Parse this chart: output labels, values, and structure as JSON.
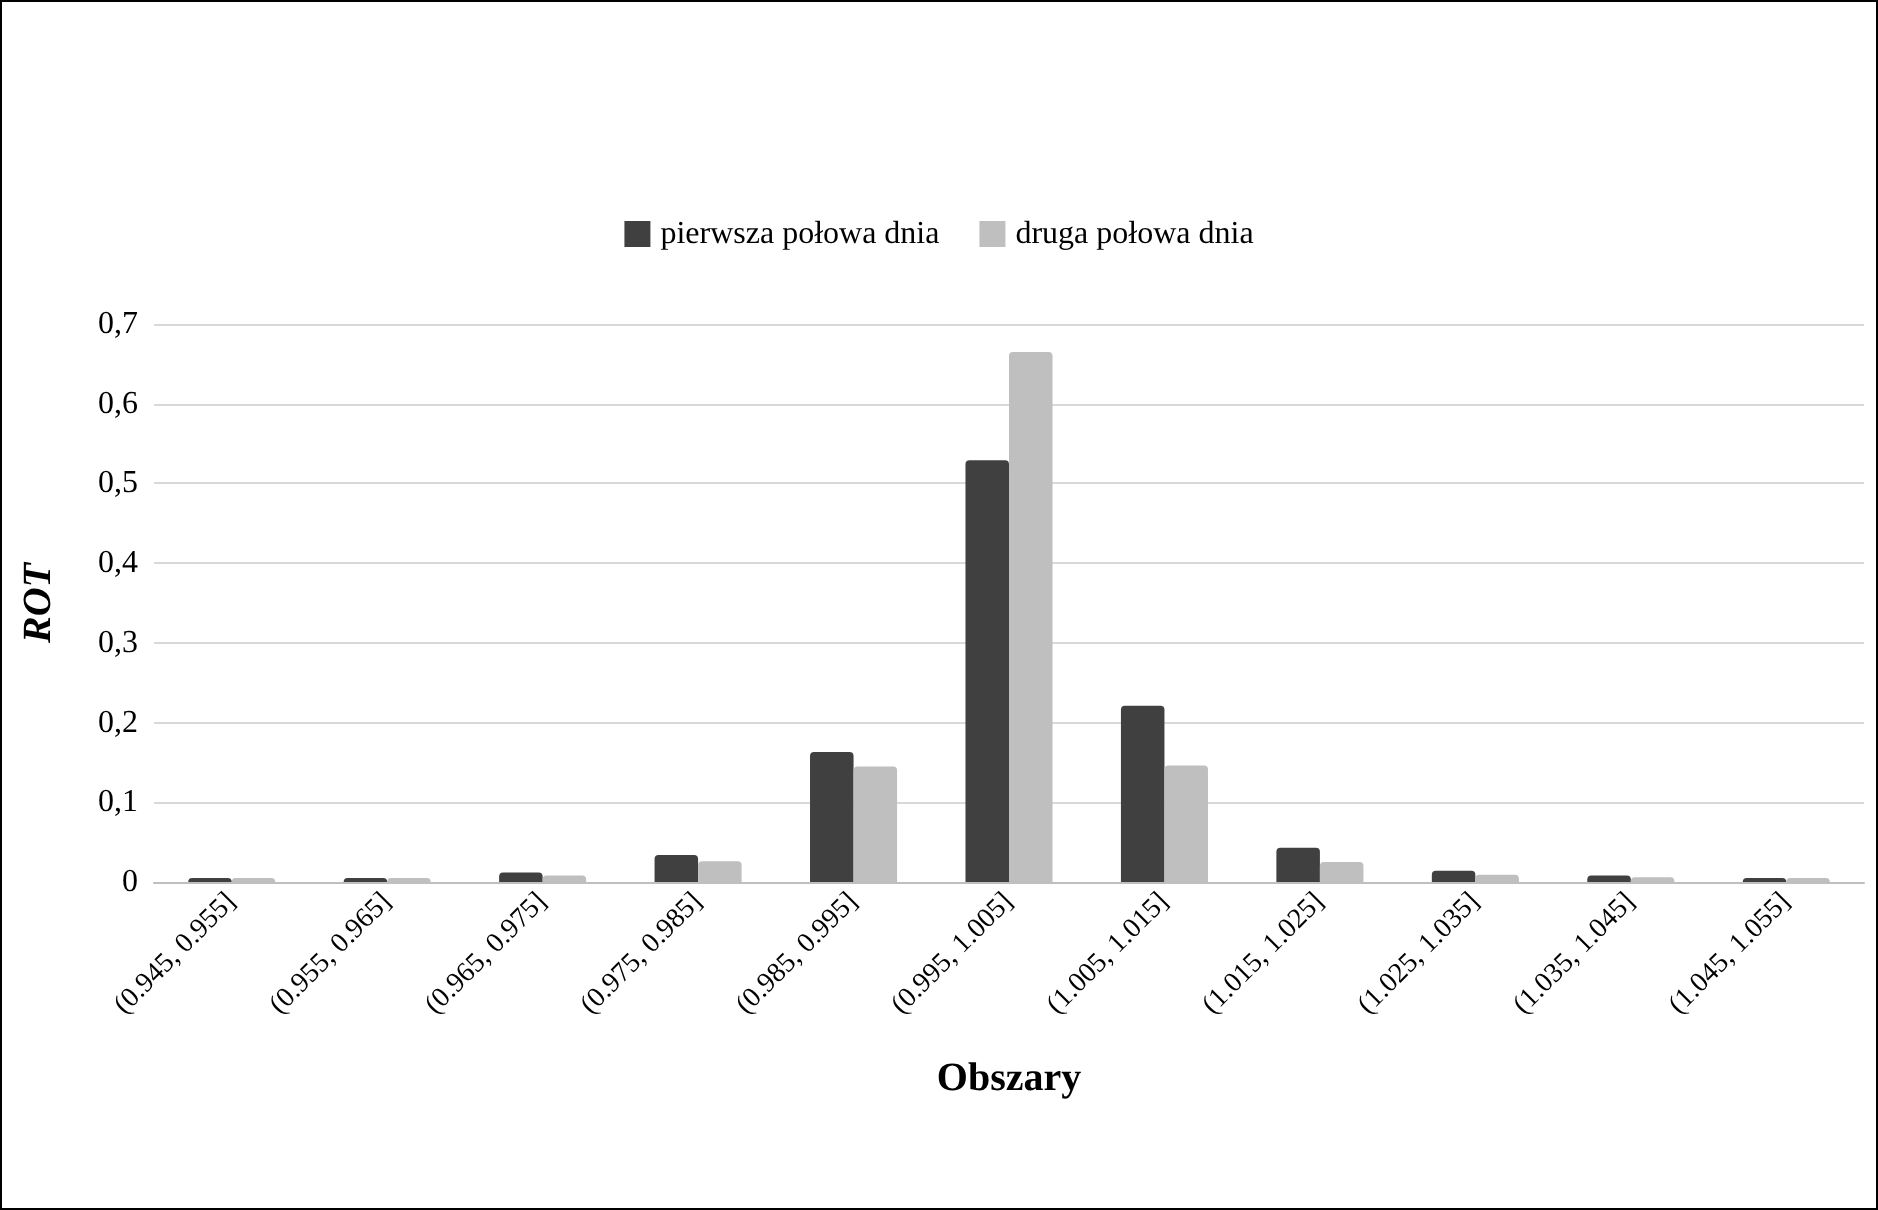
{
  "chart_data": {
    "type": "bar",
    "xlabel": "Obszary",
    "ylabel": "ROT",
    "categories": [
      "(0.945, 0.955]",
      "(0.955, 0.965]",
      "(0.965, 0.975]",
      "(0.975, 0.985]",
      "(0.985, 0.995]",
      "(0.995, 1.005]",
      "(1.005, 1.015]",
      "(1.015, 1.025]",
      "(1.025, 1.035]",
      "(1.035, 1.045]",
      "(1.045, 1.055]"
    ],
    "series": [
      {
        "name": "pierwsza połowa dnia",
        "color": "#404040",
        "values": [
          0.005,
          0.005,
          0.012,
          0.034,
          0.163,
          0.529,
          0.221,
          0.043,
          0.014,
          0.008,
          0.005
        ]
      },
      {
        "name": "druga połowa dnia",
        "color": "#bfbfbf",
        "values": [
          0.005,
          0.005,
          0.008,
          0.026,
          0.145,
          0.665,
          0.146,
          0.025,
          0.009,
          0.006,
          0.005
        ]
      }
    ],
    "ylim": [
      0,
      0.7
    ],
    "yticks": [
      0,
      {
        "value": 0.1,
        "label": "0,1"
      },
      {
        "value": 0.2,
        "label": "0,2"
      },
      {
        "value": 0.3,
        "label": "0,3"
      },
      {
        "value": 0.4,
        "label": "0,4"
      },
      {
        "value": 0.5,
        "label": "0,5"
      },
      {
        "value": 0.6,
        "label": "0,6"
      },
      {
        "value": 0.7,
        "label": "0,7"
      }
    ],
    "grid": "y",
    "legend": "top"
  }
}
